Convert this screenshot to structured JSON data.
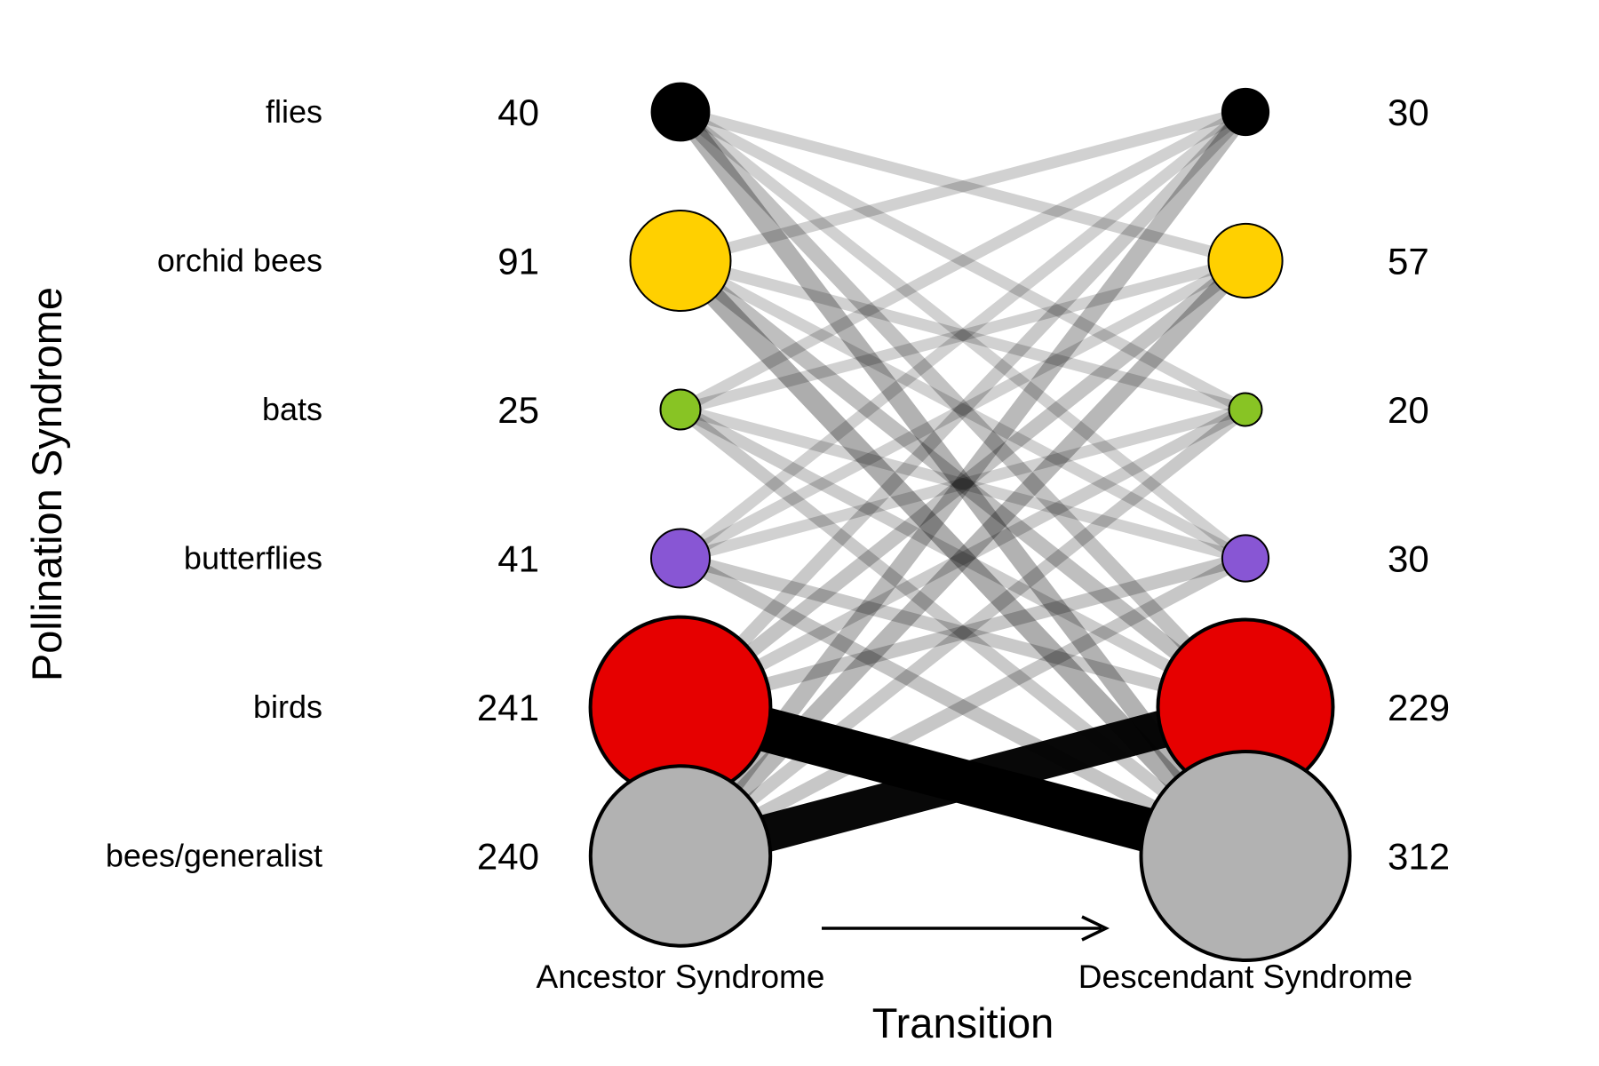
{
  "chart_data": {
    "type": "bipartite-flow",
    "ylabel": "Pollination Syndrome",
    "xlabel": "Transition",
    "left_label": "Ancestor Syndrome",
    "right_label": "Descendant Syndrome",
    "categories": [
      {
        "name": "flies",
        "ancestor": 40,
        "descendant": 30,
        "color": "#000000"
      },
      {
        "name": "orchid bees",
        "ancestor": 91,
        "descendant": 57,
        "color": "#FFD000"
      },
      {
        "name": "bats",
        "ancestor": 25,
        "descendant": 20,
        "color": "#88C424"
      },
      {
        "name": "butterflies",
        "ancestor": 41,
        "descendant": 30,
        "color": "#8856D4"
      },
      {
        "name": "birds",
        "ancestor": 241,
        "descendant": 229,
        "color": "#E60000"
      },
      {
        "name": "bees/generalist",
        "ancestor": 240,
        "descendant": 312,
        "color": "#B2B2B2"
      }
    ],
    "transitions": [
      {
        "from": "birds",
        "to": "bees/generalist",
        "weight": 1.0
      },
      {
        "from": "bees/generalist",
        "to": "birds",
        "weight": 0.85
      },
      {
        "from": "flies",
        "to": "bees/generalist",
        "weight": 0.3
      },
      {
        "from": "orchid bees",
        "to": "bees/generalist",
        "weight": 0.35
      },
      {
        "from": "bees/generalist",
        "to": "orchid bees",
        "weight": 0.28
      },
      {
        "from": "bees/generalist",
        "to": "flies",
        "weight": 0.26
      },
      {
        "from": "orchid bees",
        "to": "birds",
        "weight": 0.22
      },
      {
        "from": "flies",
        "to": "birds",
        "weight": 0.2
      },
      {
        "from": "butterflies",
        "to": "bees/generalist",
        "weight": 0.18
      },
      {
        "from": "birds",
        "to": "orchid bees",
        "weight": 0.18
      },
      {
        "from": "birds",
        "to": "butterflies",
        "weight": 0.16
      },
      {
        "from": "bees/generalist",
        "to": "butterflies",
        "weight": 0.16
      },
      {
        "from": "birds",
        "to": "flies",
        "weight": 0.15
      },
      {
        "from": "butterflies",
        "to": "birds",
        "weight": 0.15
      },
      {
        "from": "bats",
        "to": "bees/generalist",
        "weight": 0.14
      },
      {
        "from": "bees/generalist",
        "to": "bats",
        "weight": 0.14
      },
      {
        "from": "birds",
        "to": "bats",
        "weight": 0.13
      },
      {
        "from": "bats",
        "to": "birds",
        "weight": 0.12
      },
      {
        "from": "flies",
        "to": "orchid bees",
        "weight": 0.1
      },
      {
        "from": "orchid bees",
        "to": "flies",
        "weight": 0.1
      },
      {
        "from": "flies",
        "to": "bats",
        "weight": 0.1
      },
      {
        "from": "flies",
        "to": "butterflies",
        "weight": 0.1
      },
      {
        "from": "orchid bees",
        "to": "bats",
        "weight": 0.1
      },
      {
        "from": "orchid bees",
        "to": "butterflies",
        "weight": 0.1
      },
      {
        "from": "bats",
        "to": "flies",
        "weight": 0.1
      },
      {
        "from": "bats",
        "to": "orchid bees",
        "weight": 0.1
      },
      {
        "from": "bats",
        "to": "butterflies",
        "weight": 0.1
      },
      {
        "from": "butterflies",
        "to": "flies",
        "weight": 0.1
      },
      {
        "from": "butterflies",
        "to": "orchid bees",
        "weight": 0.1
      },
      {
        "from": "butterflies",
        "to": "bats",
        "weight": 0.1
      }
    ]
  }
}
